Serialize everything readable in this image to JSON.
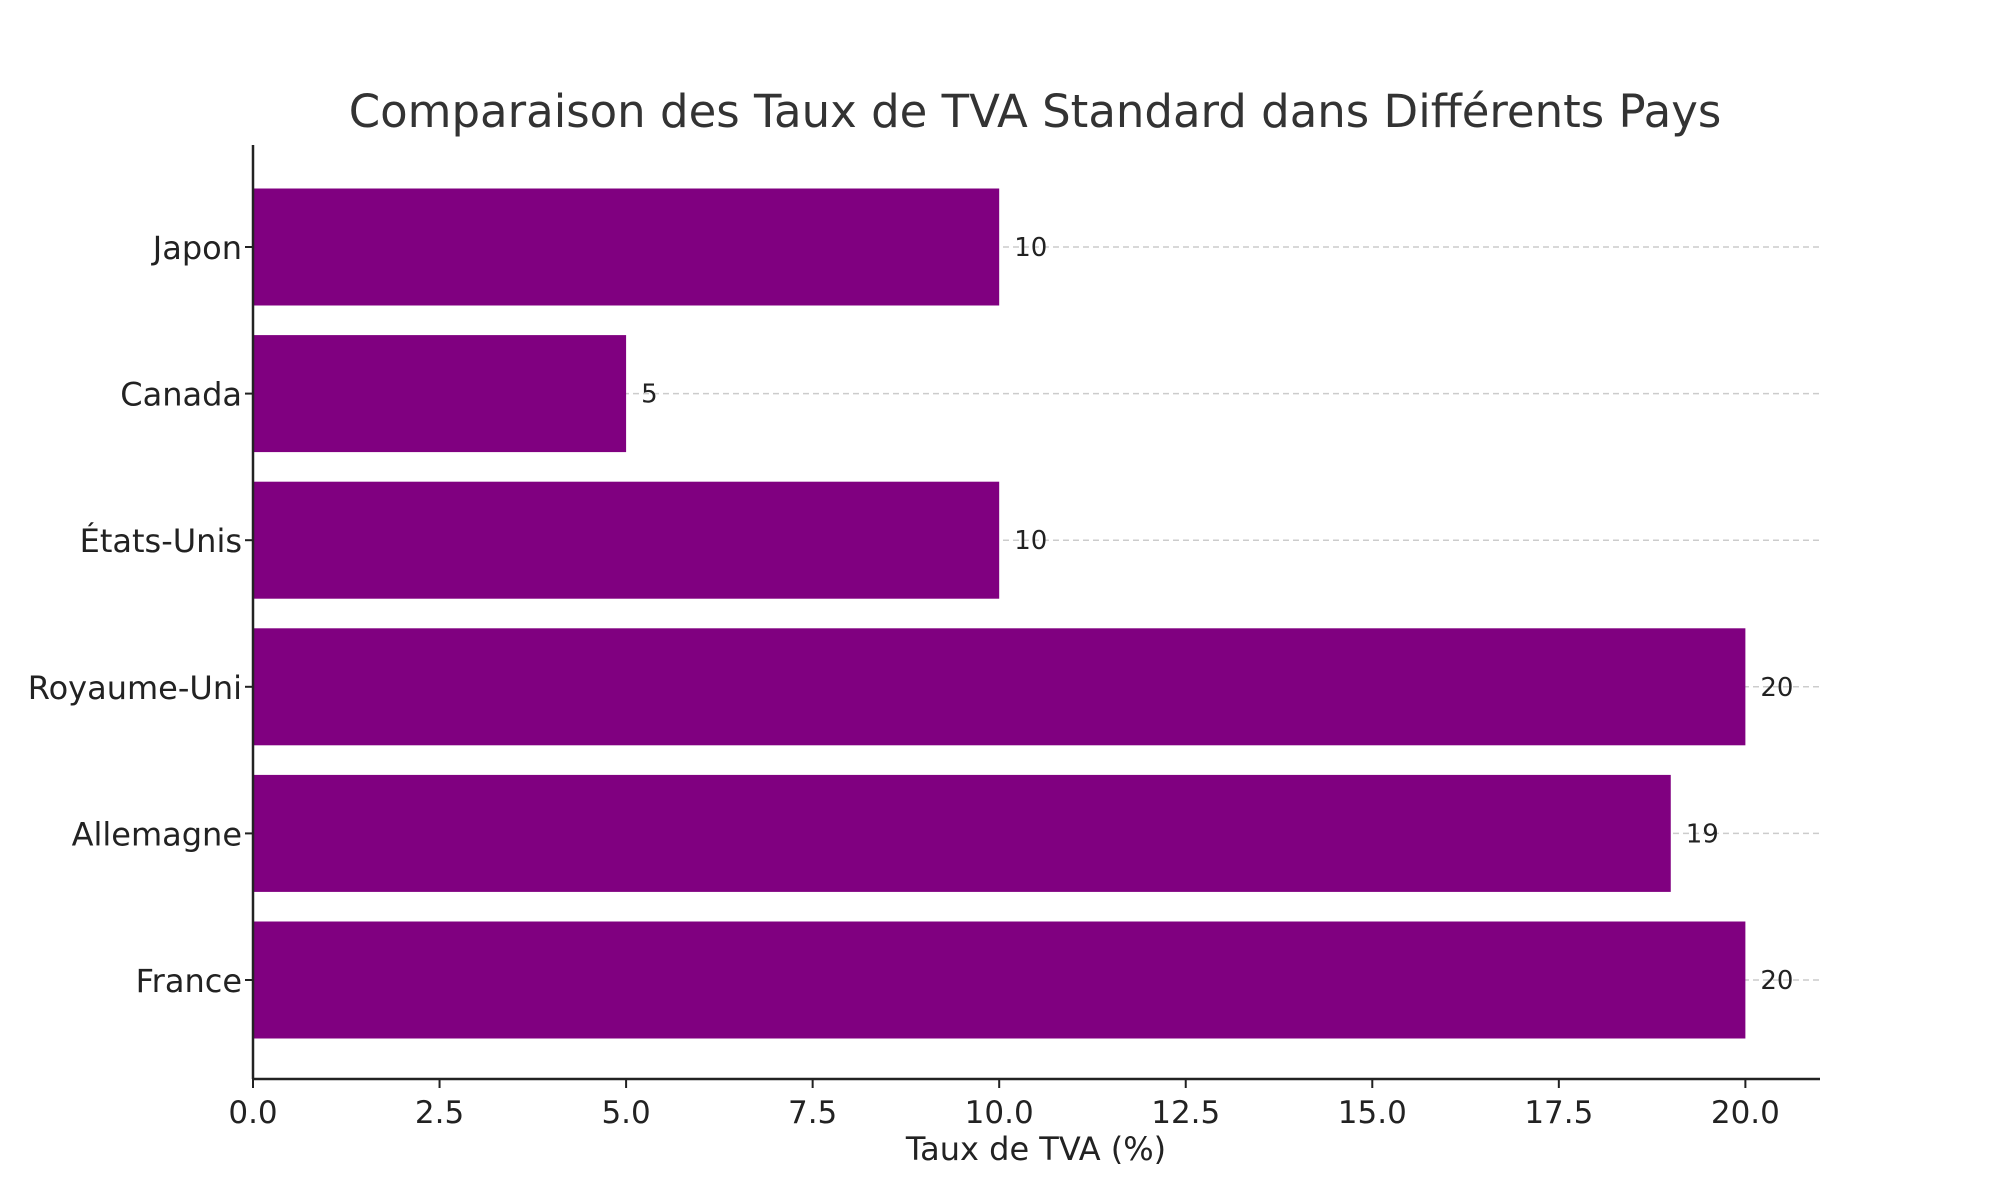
{
  "chart_data": {
    "type": "bar",
    "orientation": "horizontal",
    "title": "Comparaison des Taux de TVA Standard dans Différents Pays",
    "xlabel": "Taux de TVA (%)",
    "ylabel": "",
    "categories": [
      "France",
      "Allemagne",
      "Royaume-Uni",
      "États-Unis",
      "Canada",
      "Japon"
    ],
    "values": [
      20,
      19,
      20,
      10,
      5,
      10
    ],
    "data_labels": [
      "20",
      "19",
      "20",
      "10",
      "5",
      "10"
    ],
    "xlim": [
      0,
      21
    ],
    "xticks": [
      0,
      2.5,
      5,
      7.5,
      10,
      12.5,
      15,
      17.5,
      20
    ],
    "xtick_labels": [
      "0.0",
      "2.5",
      "5.0",
      "7.5",
      "10.0",
      "12.5",
      "15.0",
      "17.5",
      "20.0"
    ],
    "bar_color": "#800080",
    "grid": "horizontal dashed",
    "legend": "none"
  }
}
